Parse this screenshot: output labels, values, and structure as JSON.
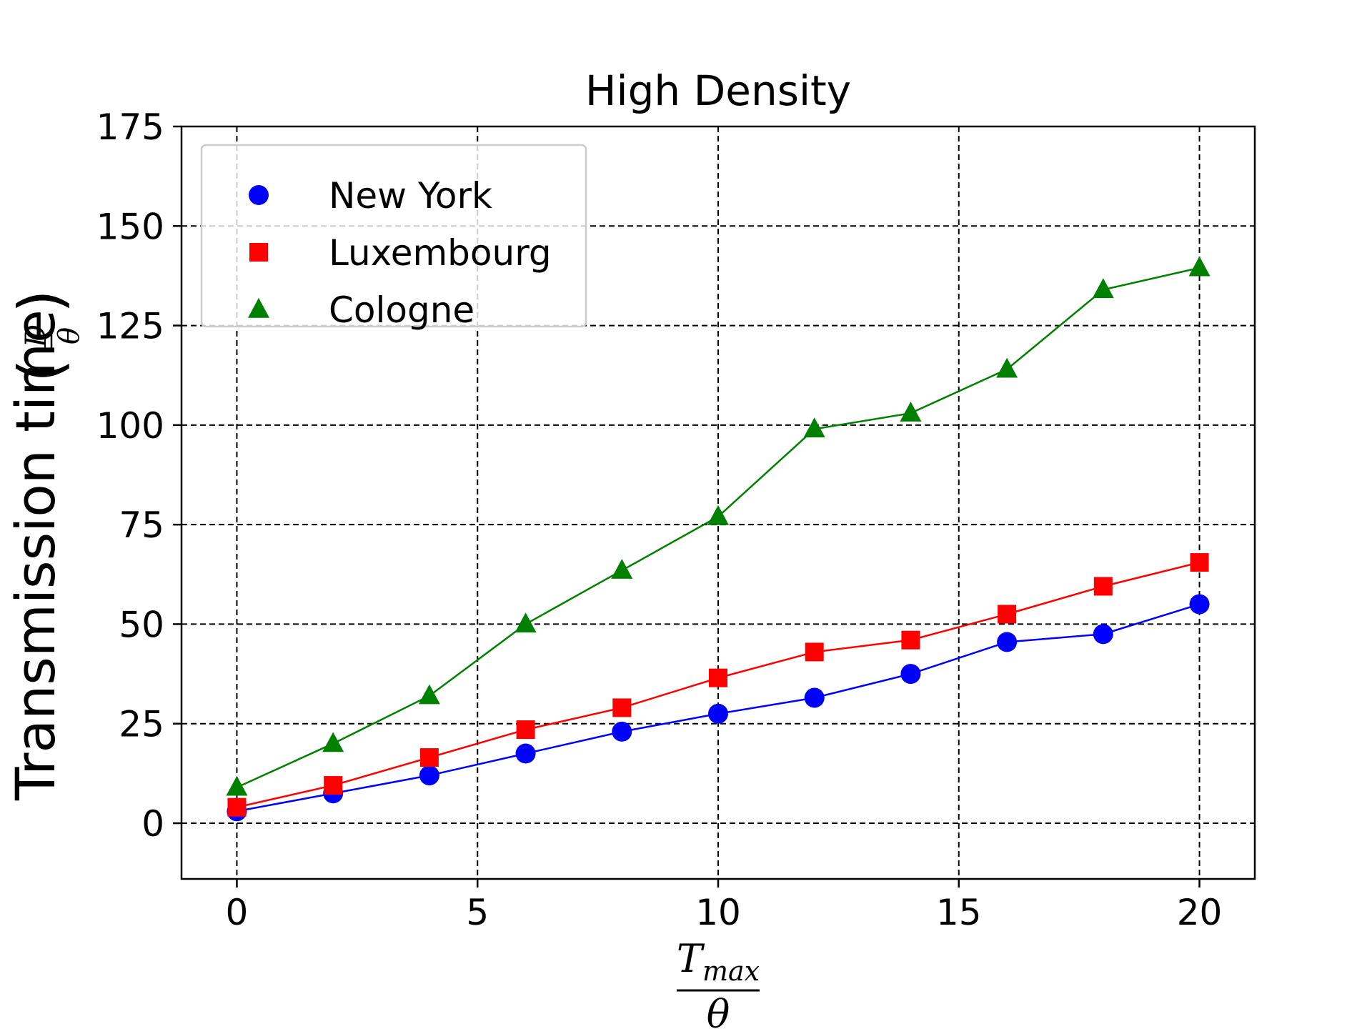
{
  "chart_data": {
    "type": "line",
    "title": "High Density",
    "xlabel": {
      "numerator_base": "T",
      "numerator_subscript": "max",
      "denominator": "θ"
    },
    "ylabel": {
      "text": "Transmission time",
      "fraction_numerator": "D",
      "fraction_denominator": "θ"
    },
    "xlim": [
      -1.15,
      21.15
    ],
    "ylim": [
      -14,
      175
    ],
    "xticks": [
      0,
      5,
      10,
      15,
      20
    ],
    "yticks": [
      0,
      25,
      50,
      75,
      100,
      125,
      150,
      175
    ],
    "grid": true,
    "grid_style": "dashed",
    "legend_position": "upper-left",
    "x": [
      0,
      2,
      4,
      6,
      8,
      10,
      12,
      14,
      16,
      18,
      20
    ],
    "series": [
      {
        "name": "New York",
        "color": "#0000ff",
        "marker": "circle",
        "values": [
          3,
          7.5,
          12,
          17.5,
          23,
          27.5,
          31.5,
          37.5,
          45.5,
          47.5,
          55
        ]
      },
      {
        "name": "Luxembourg",
        "color": "#ff0000",
        "marker": "square",
        "values": [
          4,
          9.5,
          16.5,
          23.5,
          29,
          36.5,
          43,
          46,
          52.5,
          59.5,
          65.5
        ]
      },
      {
        "name": "Cologne",
        "color": "#008000",
        "marker": "triangle",
        "values": [
          9,
          20,
          32,
          50,
          63.5,
          77,
          99,
          103,
          114,
          134,
          139.5
        ]
      }
    ]
  }
}
